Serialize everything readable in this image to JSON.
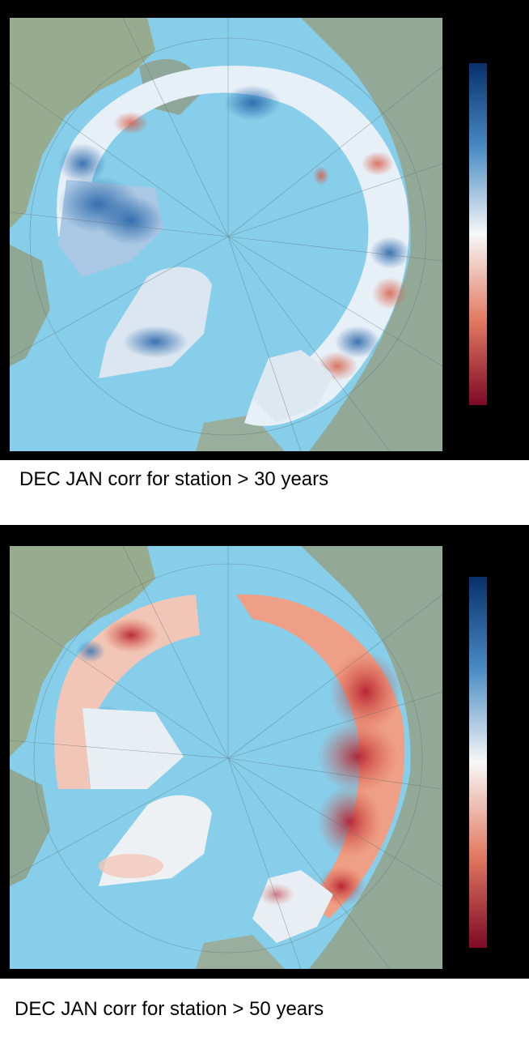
{
  "colors": {
    "ocean": "#87ceeb",
    "land": "#8fa99a",
    "ice_margin": "#c6d9e6",
    "strong_positive": "#08306b",
    "mid_positive": "#4a8cc4",
    "neutral": "#f5f5f5",
    "mid_negative": "#e27b63",
    "strong_negative": "#800020"
  },
  "panels": [
    {
      "caption": "DEC JAN corr for station > 30 years",
      "dominant_tone": "blue",
      "colorbar": {
        "top_color": "#0b4a8c",
        "middle_color": "#f7f7f7",
        "bottom_color": "#7e0a25"
      }
    },
    {
      "caption": "DEC JAN corr for station > 50 years",
      "dominant_tone": "red",
      "colorbar": {
        "top_color": "#0b4a8c",
        "middle_color": "#f7f7f7",
        "bottom_color": "#7e0a25"
      }
    }
  ]
}
